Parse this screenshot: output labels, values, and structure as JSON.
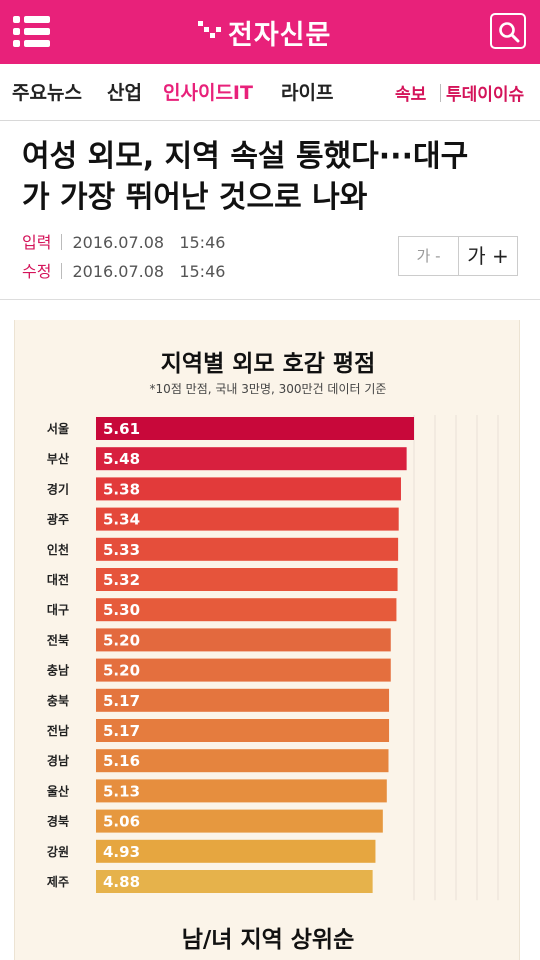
{
  "header": {
    "logo_text": "전자신문",
    "brand_color": "#e8217a",
    "menu_icon": "hamburger-menu-icon",
    "search_icon": "search-icon"
  },
  "nav": {
    "items": [
      "주요뉴스",
      "산업",
      "인사이드IT",
      "라이프"
    ],
    "active": "인사이드IT",
    "hot": [
      "속보",
      "투데이이슈"
    ]
  },
  "article": {
    "headline_line1": "여성 외모, 지역 속설 통했다···대구",
    "headline_line2": "가 가장 뛰어난 것으로 나와",
    "input_label": "입력",
    "input_datetime": "2016.07.08   15:46",
    "edit_label": "수정",
    "edit_datetime": "2016.07.08   15:46",
    "font_down_label": "가 -",
    "font_up_label": "가 +"
  },
  "infographic": {
    "title": "지역별 외모 호감 평점",
    "subtitle": "*10점 만점, 국내 3만명, 300만건 데이터 기준",
    "footer_title": "남/녀 지역 상위순"
  },
  "chart_data": {
    "type": "bar",
    "orientation": "horizontal",
    "categories": [
      "서울",
      "부산",
      "경기",
      "광주",
      "인천",
      "대전",
      "대구",
      "전북",
      "충남",
      "충북",
      "전남",
      "경남",
      "울산",
      "경북",
      "강원",
      "제주"
    ],
    "values": [
      5.61,
      5.48,
      5.38,
      5.34,
      5.33,
      5.32,
      5.3,
      5.2,
      5.2,
      5.17,
      5.17,
      5.16,
      5.13,
      5.06,
      4.93,
      4.88
    ],
    "data_labels": [
      "5.61",
      "5.48",
      "5.38",
      "5.34",
      "5.33",
      "5.32",
      "5.30",
      "5.20",
      "5.20",
      "5.17",
      "5.17",
      "5.16",
      "5.13",
      "5.06",
      "4.93",
      "4.88"
    ],
    "colors": [
      "#c8083a",
      "#d8203e",
      "#e23a3a",
      "#e4483a",
      "#e54e3b",
      "#e6543b",
      "#e65b3b",
      "#e3693e",
      "#e46f3e",
      "#e4753e",
      "#e57c3e",
      "#e5843e",
      "#e68e3e",
      "#e6983f",
      "#e6a640",
      "#e6b24b"
    ],
    "grid": true
  }
}
